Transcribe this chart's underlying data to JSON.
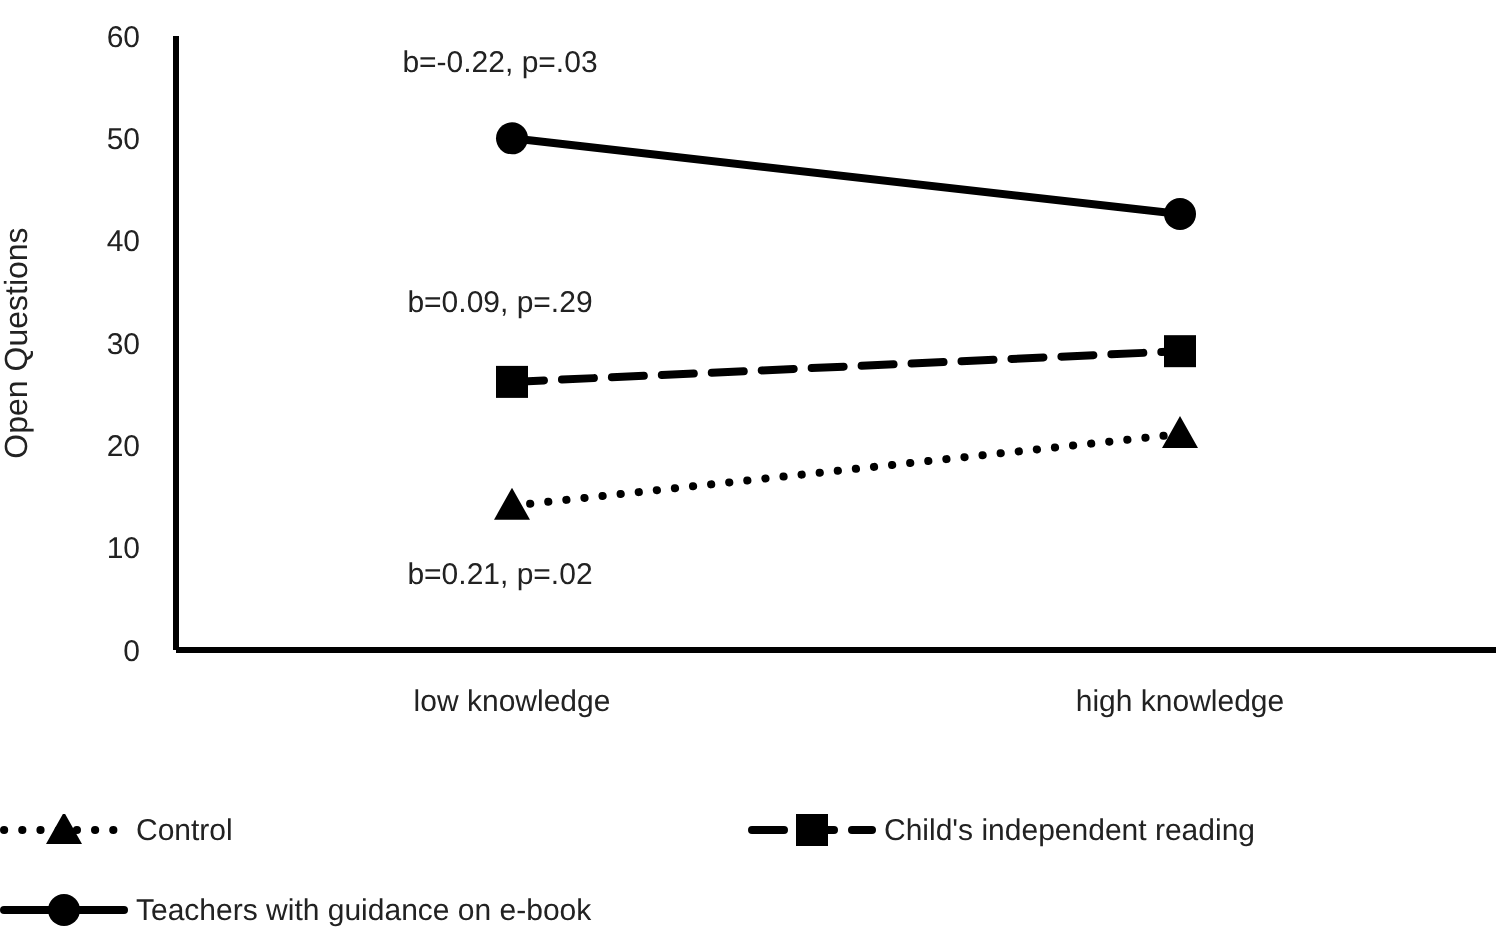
{
  "chart_data": {
    "type": "line",
    "ylabel": "Open Questions",
    "categories": [
      "low knowledge",
      "high knowledge"
    ],
    "series": [
      {
        "name": "Control",
        "color": "#000000",
        "values": [
          14.1,
          21.1
        ],
        "marker": "triangle",
        "line_style": "dotted"
      },
      {
        "name": "Child's independent reading",
        "color": "#000000",
        "values": [
          26.2,
          29.2
        ],
        "marker": "square",
        "line_style": "dashed"
      },
      {
        "name": "Teachers with guidance on e-book",
        "color": "#000000",
        "values": [
          50.0,
          42.6
        ],
        "marker": "circle",
        "line_style": "solid"
      }
    ],
    "ylim": [
      0,
      60
    ],
    "yticks": [
      0,
      10,
      20,
      30,
      40,
      50,
      60
    ],
    "grid": false,
    "legend": "bottom",
    "annotations": [
      "b=-0.22, p=.03",
      "b=0.09, p=.29",
      "b=0.21, p=.02"
    ]
  }
}
